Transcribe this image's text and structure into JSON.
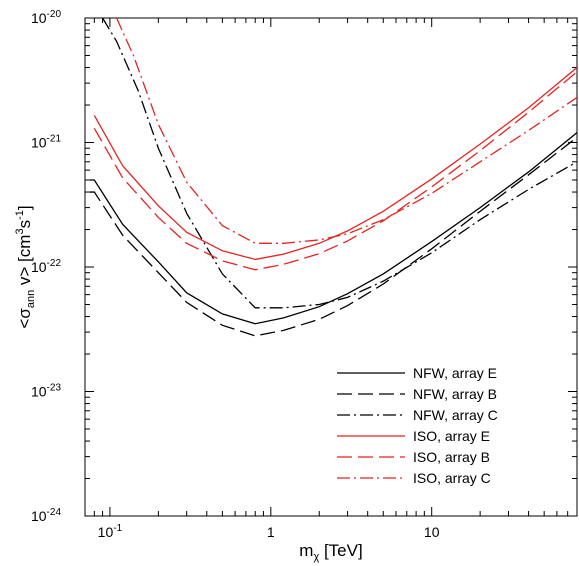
{
  "chart_data": {
    "type": "line",
    "xlabel": {
      "main": "m",
      "sub": "χ",
      "rest": " [TeV]"
    },
    "ylabel": {
      "pre": "<σ",
      "sub": "ann",
      "mid": " v> [cm",
      "sup1": "3",
      "mid2": "s",
      "sup2": "-1",
      "post": "]"
    },
    "x_scale": "log",
    "y_scale": "log",
    "xlim": [
      0.07,
      80
    ],
    "ylim": [
      1e-24,
      1e-20
    ],
    "x_ticks": [
      {
        "value": 0.1,
        "label": "10",
        "sup": "-1"
      },
      {
        "value": 1,
        "label": "1",
        "sup": ""
      },
      {
        "value": 10,
        "label": "10",
        "sup": ""
      }
    ],
    "y_ticks": [
      {
        "value": 1e-24,
        "label": "10",
        "sup": "-24"
      },
      {
        "value": 1e-23,
        "label": "10",
        "sup": "-23"
      },
      {
        "value": 1e-22,
        "label": "10",
        "sup": "-22"
      },
      {
        "value": 1e-21,
        "label": "10",
        "sup": "-21"
      },
      {
        "value": 1e-20,
        "label": "10",
        "sup": "-20"
      }
    ],
    "grid": false,
    "legend_position": "bottom-right",
    "series": [
      {
        "name": "NFW, array E",
        "color": "#000000",
        "dash": "solid",
        "x": [
          0.075,
          0.08,
          0.12,
          0.2,
          0.3,
          0.5,
          0.8,
          1.2,
          2,
          3,
          5,
          10,
          20,
          40,
          80
        ],
        "y": [
          5e-22,
          5e-22,
          2.2e-22,
          1.1e-22,
          6.2e-23,
          4.2e-23,
          3.5e-23,
          3.9e-23,
          4.8e-23,
          6.1e-23,
          8.8e-23,
          1.6e-22,
          3e-22,
          5.8e-22,
          1.2e-21
        ]
      },
      {
        "name": "NFW, array B",
        "color": "#000000",
        "dash": "long",
        "x": [
          0.075,
          0.08,
          0.12,
          0.2,
          0.3,
          0.5,
          0.8,
          1.2,
          2,
          3,
          5,
          10,
          20,
          40,
          80
        ],
        "y": [
          4e-22,
          4e-22,
          1.8e-22,
          9e-23,
          5.2e-23,
          3.4e-23,
          2.8e-23,
          3.1e-23,
          3.8e-23,
          4.9e-23,
          7.3e-23,
          1.4e-22,
          2.8e-22,
          5.5e-22,
          1.1e-21
        ]
      },
      {
        "name": "NFW, array C",
        "color": "#000000",
        "dash": "dashdot",
        "x": [
          0.09,
          0.11,
          0.15,
          0.2,
          0.3,
          0.5,
          0.8,
          1.2,
          2,
          3,
          5,
          10,
          20,
          40,
          80
        ],
        "y": [
          1e-20,
          6.5e-21,
          2.6e-21,
          9e-22,
          2.7e-22,
          8.8e-23,
          4.7e-23,
          4.7e-23,
          5e-23,
          5.7e-23,
          7.7e-23,
          1.3e-22,
          2.4e-22,
          4.2e-22,
          7e-22
        ]
      },
      {
        "name": "ISO, array E",
        "color": "#e8231f",
        "dash": "solid",
        "x": [
          0.08,
          0.12,
          0.2,
          0.3,
          0.5,
          0.8,
          1.2,
          2,
          3,
          5,
          10,
          20,
          40,
          80
        ],
        "y": [
          1.65e-21,
          6.5e-22,
          3.1e-22,
          1.9e-22,
          1.35e-22,
          1.15e-22,
          1.27e-22,
          1.55e-22,
          1.95e-22,
          2.8e-22,
          5.1e-22,
          9.7e-22,
          1.9e-21,
          4e-21
        ]
      },
      {
        "name": "ISO, array B",
        "color": "#e8231f",
        "dash": "long",
        "x": [
          0.08,
          0.12,
          0.2,
          0.3,
          0.5,
          0.8,
          1.2,
          2,
          3,
          5,
          10,
          20,
          40,
          80
        ],
        "y": [
          1.3e-21,
          5.2e-22,
          2.5e-22,
          1.55e-22,
          1.12e-22,
          9.5e-23,
          1.05e-22,
          1.28e-22,
          1.62e-22,
          2.35e-22,
          4.4e-22,
          8.6e-22,
          1.75e-21,
          3.7e-21
        ]
      },
      {
        "name": "ISO, array C",
        "color": "#e8231f",
        "dash": "dashdot",
        "x": [
          0.11,
          0.14,
          0.2,
          0.3,
          0.5,
          0.8,
          1.2,
          2,
          3,
          5,
          10,
          20,
          40,
          80
        ],
        "y": [
          1e-20,
          5e-21,
          1.4e-21,
          4.8e-22,
          2.15e-22,
          1.55e-22,
          1.55e-22,
          1.65e-22,
          1.85e-22,
          2.4e-22,
          3.9e-22,
          7e-22,
          1.25e-21,
          2.3e-21
        ]
      }
    ]
  }
}
